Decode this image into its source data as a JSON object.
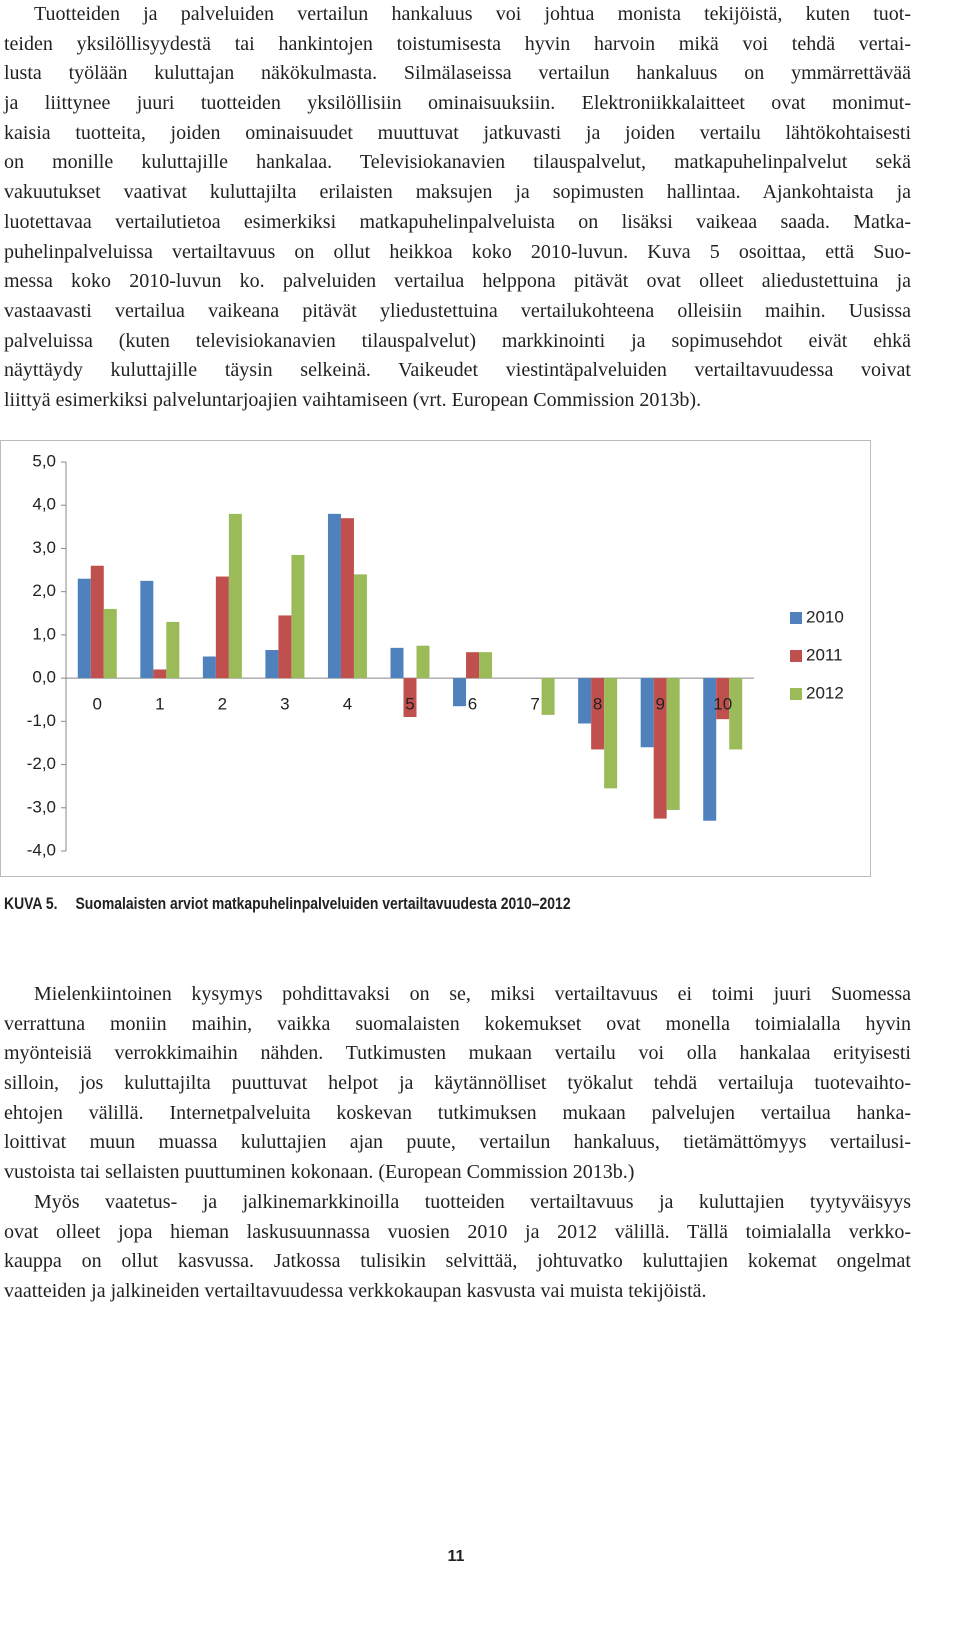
{
  "text_top": {
    "lines": [
      "Tuotteiden ja palveluiden vertailun hankaluus voi johtua monista tekijöistä, kuten tuot-",
      "teiden yksilöllisyydestä tai hankintojen toistumisesta hyvin harvoin mikä voi tehdä vertai-",
      "lusta työlään kuluttajan näkökulmasta. Silmälaseissa vertailun hankaluus on ymmärrettävää",
      "ja liittynee juuri tuotteiden yksilöllisiin ominaisuuksiin. Elektroniikkalaitteet ovat monimut-",
      "kaisia tuotteita, joiden ominaisuudet muuttuvat jatkuvasti ja joiden vertailu lähtökohtaisesti",
      "on monille kuluttajille hankalaa. Televisiokanavien tilauspalvelut, matkapuhelinpalvelut sekä",
      "vakuutukset vaativat kuluttajilta erilaisten maksujen ja sopimusten hallintaa. Ajankohtaista ja",
      "luotettavaa vertailutietoa esimerkiksi matkapuhelinpalveluista on lisäksi vaikeaa saada. Matka-",
      "puhelinpalveluissa vertailtavuus on ollut heikkoa koko 2010-luvun. Kuva 5 osoittaa, että Suo-",
      "messa koko 2010-luvun ko. palveluiden vertailua helppona pitävät ovat olleet aliedustettuina ja",
      "vastaavasti vertailua vaikeana pitävät yliedustettuina vertailukohteena olleisiin maihin. Uusissa",
      "palveluissa (kuten televisiokanavien tilauspalvelut) markkinointi ja sopimusehdot eivät ehkä",
      "näyttäydy kuluttajille täysin selkeinä. Vaikeudet viestintäpalveluiden vertailtavuudessa voivat",
      "liittyä esimerkiksi palveluntarjoajien vaihtamiseen (vrt. European Commission 2013b)."
    ]
  },
  "chart_data": {
    "type": "bar",
    "categories": [
      "0",
      "1",
      "2",
      "3",
      "4",
      "5",
      "6",
      "7",
      "8",
      "9",
      "10"
    ],
    "series": [
      {
        "name": "2010",
        "color": "#4f81bd",
        "values": [
          2.3,
          2.25,
          0.5,
          0.65,
          3.8,
          0.7,
          -0.65,
          0,
          -1.05,
          -1.6,
          -3.3
        ]
      },
      {
        "name": "2011",
        "color": "#c0504d",
        "values": [
          2.6,
          0.2,
          2.35,
          1.45,
          3.7,
          -0.9,
          0.6,
          0,
          -1.65,
          -3.25,
          -0.95
        ]
      },
      {
        "name": "2012",
        "color": "#9bbb59",
        "values": [
          1.6,
          1.3,
          3.8,
          2.85,
          2.4,
          0.75,
          0.6,
          -0.85,
          -2.55,
          -3.05,
          -1.65
        ]
      }
    ],
    "ylim": [
      -4,
      5
    ],
    "yticks": [
      {
        "value": -4,
        "label": "-4,0"
      },
      {
        "value": -3,
        "label": "-3,0"
      },
      {
        "value": -2,
        "label": "-2,0"
      },
      {
        "value": -1,
        "label": "-1,0"
      },
      {
        "value": 0,
        "label": "0,0"
      },
      {
        "value": 1,
        "label": "1,0"
      },
      {
        "value": 2,
        "label": "2,0"
      },
      {
        "value": 3,
        "label": "3,0"
      },
      {
        "value": 4,
        "label": "4,0"
      },
      {
        "value": 5,
        "label": "5,0"
      }
    ],
    "grid": false,
    "legend": "right"
  },
  "caption": {
    "label": "KUVA 5.",
    "text": "Suomalaisten arviot matkapuhelinpalveluiden vertailtavuudesta 2010–2012"
  },
  "text_bottom": {
    "paragraphs": [
      [
        "Mielenkiintoinen kysymys pohdittavaksi on se, miksi vertailtavuus ei toimi juuri Suomessa",
        "verrattuna moniin maihin, vaikka suomalaisten kokemukset ovat monella toimialalla hyvin",
        "myönteisiä verrokkimaihin nähden. Tutkimusten mukaan vertailu voi olla hankalaa erityisesti",
        "silloin, jos kuluttajilta puuttuvat helpot ja käytännölliset työkalut tehdä vertailuja tuotevaihto-",
        "ehtojen välillä. Internetpalveluita koskevan tutkimuksen mukaan palvelujen vertailua hanka-",
        "loittivat muun muassa kuluttajien ajan puute, vertailun hankaluus, tietämättömyys vertailusi-",
        "vustoista tai sellaisten puuttuminen kokonaan. (European Commission 2013b.)"
      ],
      [
        "Myös vaatetus- ja jalkinemarkkinoilla tuotteiden vertailtavuus ja kuluttajien tyytyväisyys",
        "ovat olleet jopa hieman laskusuunnassa vuosien 2010 ja 2012 välillä. Tällä toimialalla verkko-",
        "kauppa on ollut kasvussa. Jatkossa tulisikin selvittää, johtuvatko kuluttajien kokemat ongelmat",
        "vaatteiden ja jalkineiden vertailtavuudessa verkkokaupan kasvusta vai muista tekijöistä."
      ]
    ]
  },
  "page_number": "11"
}
